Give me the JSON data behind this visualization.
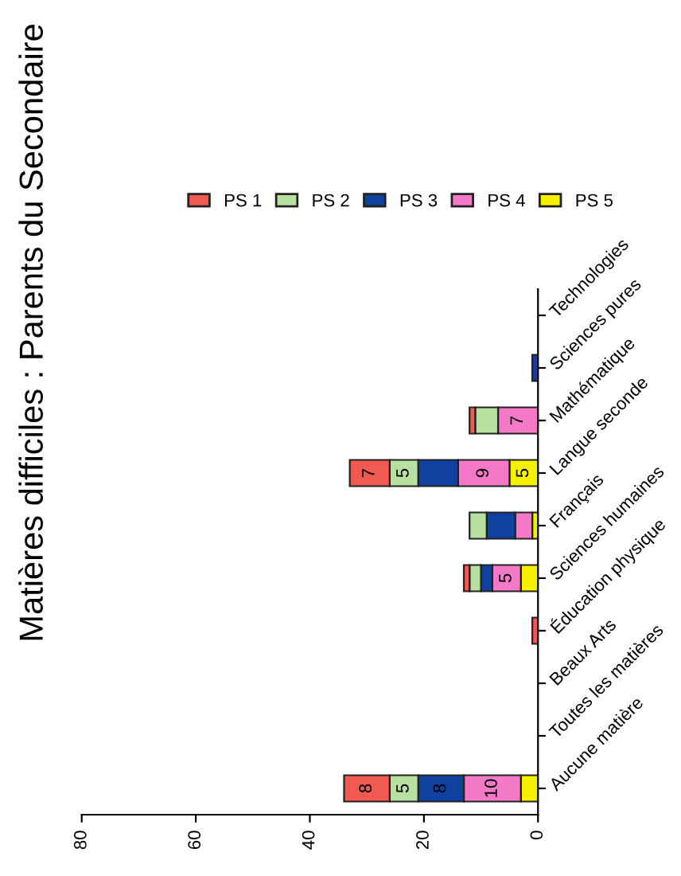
{
  "chart_data": {
    "type": "bar",
    "orientation": "horizontal",
    "stacked": true,
    "title": "Matières difficiles : Parents du Secondaire",
    "categories": [
      "Technologies",
      "Sciences pures",
      "Mathématique",
      "Langue seconde",
      "Français",
      "Sciences humaines",
      "Éducation physique",
      "Beaux Arts",
      "Toutes les matières",
      "Aucune matière"
    ],
    "series": [
      {
        "name": "PS 5",
        "color": "#f5f000",
        "values": [
          0,
          0,
          0,
          5,
          1,
          3,
          0,
          0,
          0,
          3
        ],
        "value_labels": [
          null,
          null,
          null,
          "5",
          null,
          null,
          null,
          null,
          null,
          null
        ]
      },
      {
        "name": "PS 4",
        "color": "#f47ac8",
        "values": [
          0,
          0,
          7,
          9,
          3,
          5,
          0,
          0,
          0,
          10
        ],
        "value_labels": [
          null,
          null,
          "7",
          "9",
          null,
          "5",
          null,
          null,
          null,
          "10"
        ]
      },
      {
        "name": "PS 3",
        "color": "#1040a0",
        "values": [
          0,
          1,
          0,
          7,
          5,
          2,
          0,
          0,
          0,
          8
        ],
        "value_labels": [
          null,
          null,
          null,
          null,
          null,
          null,
          null,
          null,
          null,
          "8"
        ]
      },
      {
        "name": "PS 2",
        "color": "#b8e0a0",
        "values": [
          0,
          0,
          4,
          5,
          3,
          2,
          0,
          0,
          0,
          5
        ],
        "value_labels": [
          null,
          null,
          null,
          "5",
          null,
          null,
          null,
          null,
          null,
          "5"
        ]
      },
      {
        "name": "PS 1",
        "color": "#f05a50",
        "values": [
          0,
          0,
          1,
          7,
          0,
          1,
          1,
          0,
          0,
          8
        ],
        "value_labels": [
          null,
          null,
          null,
          "7",
          null,
          null,
          null,
          null,
          null,
          "8"
        ]
      }
    ],
    "xlim": [
      80,
      0
    ],
    "xticks": [
      0,
      20,
      40,
      60,
      80
    ],
    "grid": false,
    "legend": "top right"
  }
}
